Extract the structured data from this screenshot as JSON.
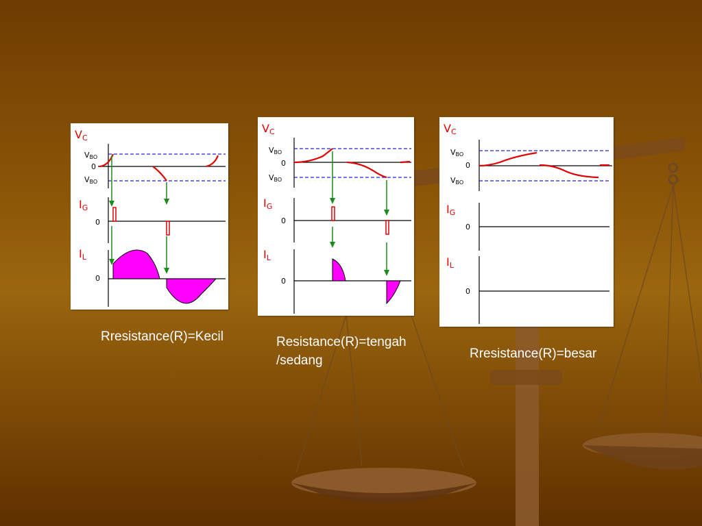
{
  "colors": {
    "signal": "#e00000",
    "threshold": "#2020d0",
    "arrow": "#1c8a1c",
    "fill": "#ff00ff",
    "axis": "#000000"
  },
  "panels": [
    {
      "vc_label": "V",
      "vc_sub": "C",
      "vbo_top": "V",
      "vbo_top_sub": "BO",
      "zero": "0",
      "vbo_bot": "V",
      "vbo_bot_sub": "BO",
      "ig_label": "I",
      "ig_sub": "G",
      "ig_zero": "0",
      "il_label": "I",
      "il_sub": "L",
      "il_zero": "0",
      "caption": "Rresistance(R)=Kecil"
    },
    {
      "vc_label": "V",
      "vc_sub": "C",
      "vbo_top": "V",
      "vbo_top_sub": "BO",
      "zero": "0",
      "vbo_bot": "V",
      "vbo_bot_sub": "BO",
      "ig_label": "I",
      "ig_sub": "G",
      "ig_zero": "0",
      "il_label": "I",
      "il_sub": "L",
      "il_zero": "0",
      "caption_line1": "Resistance(R)=tengah",
      "caption_line2": "/sedang"
    },
    {
      "vc_label": "V",
      "vc_sub": "C",
      "vbo_top": "V",
      "vbo_top_sub": "BO",
      "zero": "0",
      "vbo_bot": "V",
      "vbo_bot_sub": "BO",
      "ig_label": "I",
      "ig_sub": "G",
      "ig_zero": "0",
      "il_label": "I",
      "il_sub": "L",
      "il_zero": "0",
      "caption": "Rresistance(R)=besar"
    }
  ]
}
